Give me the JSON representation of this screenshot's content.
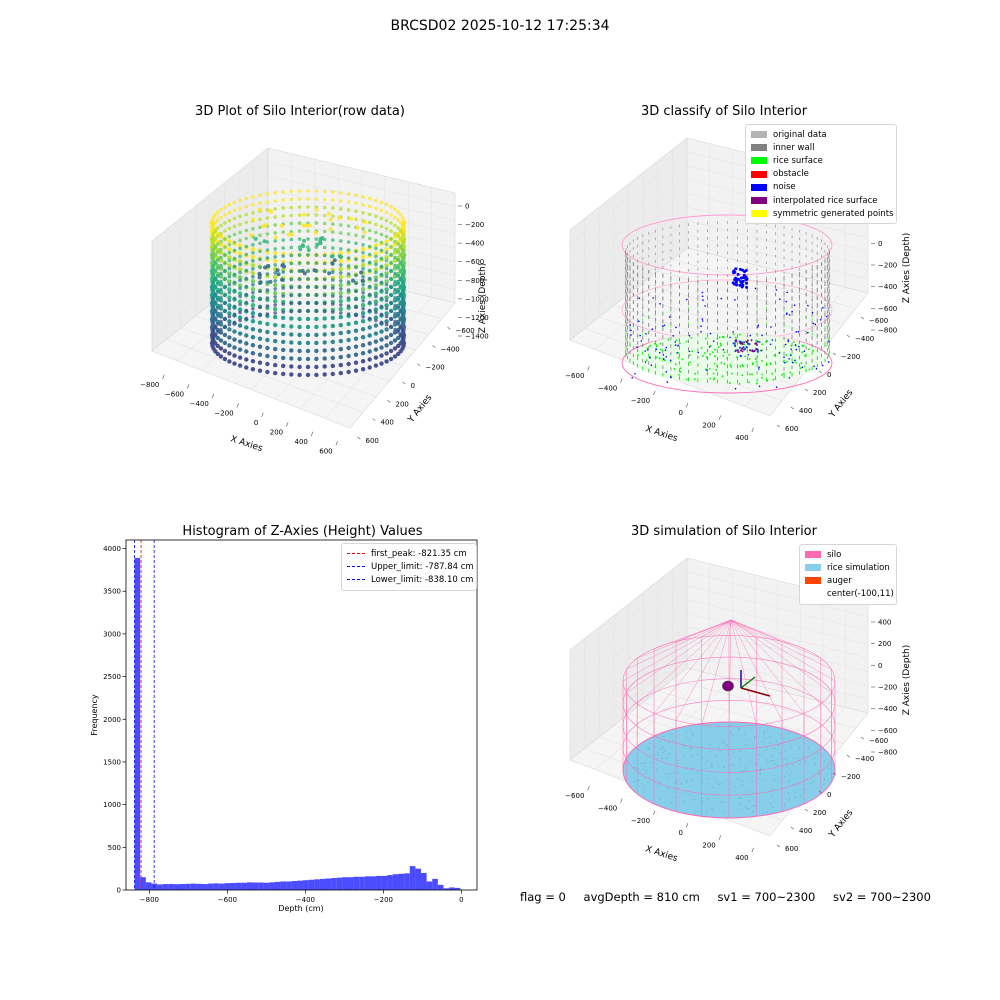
{
  "suptitle": "BRCSD02 2025-10-12 17:25:34",
  "footer": {
    "flag": "flag = 0",
    "avg_depth": "avgDepth = 810 cm",
    "sv1": "sv1 = 700~2300",
    "sv2": "sv2 = 700~2300"
  },
  "panels": {
    "raw": {
      "title": "3D Plot of Silo Interior(row data)",
      "xlabel": "X Axies",
      "ylabel": "Y Axies",
      "zlabel": "Z Axies (Depth)",
      "xticks": [
        "−800",
        "−600",
        "−400",
        "−200",
        "0",
        "200",
        "400",
        "600"
      ],
      "yticks": [
        "600",
        "400",
        "200",
        "0",
        "−200",
        "−400",
        "−600"
      ],
      "zticks": [
        "0",
        "−200",
        "−400",
        "−600",
        "−800",
        "−1000",
        "−1200",
        "−1400"
      ]
    },
    "classify": {
      "title": "3D classify of Silo Interior",
      "xlabel": "X Axies",
      "ylabel": "Y Axies",
      "zlabel": "Z Axies (Depth)",
      "xticks": [
        "−600",
        "−400",
        "−200",
        "0",
        "200",
        "400"
      ],
      "yticks": [
        "600",
        "400",
        "200",
        "0",
        "−200",
        "−400",
        "−600"
      ],
      "zticks": [
        "400",
        "200",
        "0",
        "−200",
        "−400",
        "−600",
        "−800"
      ],
      "legend": [
        {
          "label": "original data",
          "color": "#b3b3b3"
        },
        {
          "label": "inner wall",
          "color": "#808080"
        },
        {
          "label": "rice surface",
          "color": "#00ff00"
        },
        {
          "label": "obstacle",
          "color": "#ff0000"
        },
        {
          "label": "noise",
          "color": "#0000ff"
        },
        {
          "label": "interpolated rice surface",
          "color": "#800080"
        },
        {
          "label": "symmetric generated points",
          "color": "#ffff00"
        }
      ]
    },
    "simulation": {
      "title": "3D simulation of Silo Interior",
      "xlabel": "X Axies",
      "ylabel": "Y Axies",
      "zlabel": "Z Axies (Depth)",
      "xticks": [
        "−600",
        "−400",
        "−200",
        "0",
        "200",
        "400"
      ],
      "yticks": [
        "600",
        "400",
        "200",
        "0",
        "−200",
        "−400",
        "−600"
      ],
      "zticks": [
        "400",
        "200",
        "0",
        "−200",
        "−400",
        "−600",
        "−800"
      ],
      "legend": [
        {
          "label": "silo",
          "color": "#ff69b4"
        },
        {
          "label": "rice simulation",
          "color": "#87ceeb"
        },
        {
          "label": "auger",
          "color": "#ff4500"
        },
        {
          "label": "center(-100,11)",
          "color": ""
        }
      ]
    }
  },
  "chart_data": [
    {
      "type": "bar",
      "title": "Histogram of Z-Axies (Height) Values",
      "xlabel": "Depth (cm)",
      "ylabel": "Frequency",
      "xlim": [
        -860,
        40
      ],
      "ylim": [
        0,
        4100
      ],
      "xticks": [
        -800,
        -600,
        -400,
        -200,
        0
      ],
      "yticks": [
        0,
        500,
        1000,
        1500,
        2000,
        2500,
        3000,
        3500,
        4000
      ],
      "bar_color": "#0000ff",
      "bin_width": 14.4,
      "bins": [
        [
          -838,
          3890
        ],
        [
          -823.6,
          150
        ],
        [
          -809.2,
          90
        ],
        [
          -794.8,
          75
        ],
        [
          -780.4,
          65
        ],
        [
          -766,
          70
        ],
        [
          -751.6,
          70
        ],
        [
          -737.2,
          68
        ],
        [
          -722.8,
          70
        ],
        [
          -708.4,
          72
        ],
        [
          -694,
          75
        ],
        [
          -679.6,
          72
        ],
        [
          -665.2,
          70
        ],
        [
          -650.8,
          75
        ],
        [
          -636.4,
          78
        ],
        [
          -622,
          75
        ],
        [
          -607.6,
          80
        ],
        [
          -593.2,
          82
        ],
        [
          -578.8,
          85
        ],
        [
          -564.4,
          85
        ],
        [
          -550,
          90
        ],
        [
          -535.6,
          88
        ],
        [
          -521.2,
          88
        ],
        [
          -506.8,
          85
        ],
        [
          -492.4,
          90
        ],
        [
          -478,
          95
        ],
        [
          -463.6,
          100
        ],
        [
          -449.2,
          100
        ],
        [
          -434.8,
          105
        ],
        [
          -420.4,
          110
        ],
        [
          -406,
          115
        ],
        [
          -391.6,
          120
        ],
        [
          -377.2,
          125
        ],
        [
          -362.8,
          130
        ],
        [
          -348.4,
          135
        ],
        [
          -334,
          140
        ],
        [
          -319.6,
          145
        ],
        [
          -305.2,
          150
        ],
        [
          -290.8,
          150
        ],
        [
          -276.4,
          155
        ],
        [
          -262,
          155
        ],
        [
          -247.6,
          160
        ],
        [
          -233.2,
          160
        ],
        [
          -218.8,
          165
        ],
        [
          -204.4,
          165
        ],
        [
          -190,
          175
        ],
        [
          -175.6,
          185
        ],
        [
          -161.2,
          190
        ],
        [
          -146.8,
          195
        ],
        [
          -132.4,
          280
        ],
        [
          -118,
          250
        ],
        [
          -103.6,
          200
        ],
        [
          -89.2,
          100
        ],
        [
          -74.8,
          130
        ],
        [
          -60.4,
          60
        ],
        [
          -46,
          20
        ],
        [
          -31.6,
          30
        ],
        [
          -17.2,
          25
        ]
      ],
      "vlines": [
        {
          "label": "first_peak: -821.35 cm",
          "x": -821.35,
          "color": "#ff0000"
        },
        {
          "label": "Upper_limit: -787.84 cm",
          "x": -787.84,
          "color": "#0000ff"
        },
        {
          "label": "Lower_limit: -838.10 cm",
          "x": -838.1,
          "color": "#0000ff"
        }
      ],
      "legend_position": "upper right"
    }
  ]
}
